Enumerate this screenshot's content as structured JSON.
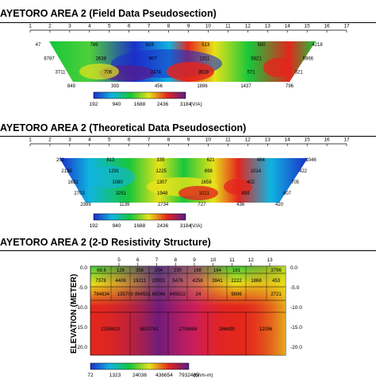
{
  "panels": [
    {
      "title": "AYETORO AREA 2 (Field Data Pseudosection)",
      "axis_ticks": [
        1,
        2,
        3,
        4,
        5,
        6,
        7,
        8,
        9,
        10,
        11,
        12,
        13,
        14,
        15,
        16,
        17
      ],
      "pseudo_values": [
        "47",
        "789",
        "628",
        "513",
        "500",
        "4218",
        "6787",
        "2638",
        "907",
        "1311",
        "5821",
        "5966",
        "3711",
        "706",
        "2474",
        "3518",
        "571",
        "321",
        "849",
        "393",
        "456",
        "1896",
        "1437",
        "796"
      ],
      "colorbar": {
        "ticks": [
          "192",
          "940",
          "1688",
          "2436",
          "3184"
        ],
        "unit": "(V/A)"
      }
    },
    {
      "title": "AYETORO AREA 2 (Theoretical Data Pseudosection)",
      "axis_ticks": [
        1,
        2,
        3,
        4,
        5,
        6,
        7,
        8,
        9,
        10,
        11,
        12,
        13,
        14,
        15,
        16,
        17
      ],
      "pseudo_values": [
        "202",
        "813",
        "335",
        "621",
        "464",
        "1046",
        "2138",
        "1291",
        "1225",
        "698",
        "1014",
        "422",
        "1652",
        "1080",
        "1307",
        "1656",
        "402",
        "705",
        "2703",
        "3251",
        "1948",
        "1021",
        "839",
        "607",
        "2399",
        "1139",
        "2734",
        "727",
        "436",
        "420"
      ],
      "colorbar": {
        "ticks": [
          "192",
          "940",
          "1688",
          "2436",
          "3184"
        ],
        "unit": "(V/A)"
      }
    },
    {
      "title": "AYETORO AREA 2 (2-D Resistivity Structure)",
      "x_ticks": [
        "5",
        "6",
        "7",
        "8",
        "9",
        "10",
        "11",
        "12",
        "13"
      ],
      "ylabel": "ELEVATION (METER)",
      "y_ticks": [
        "0.0",
        "-5.0",
        "-10.0",
        "-15.0",
        "-20.0"
      ],
      "layer1": [
        "68.6",
        "126",
        "356",
        "204",
        "230",
        "168",
        "164",
        "181",
        "3796"
      ],
      "layer2": [
        "7378",
        "4406",
        "19211",
        "20931",
        "5476",
        "4258",
        "3941",
        "2222",
        "1868",
        "453"
      ],
      "layer3": [
        "784834",
        "155700",
        "864531",
        "65046",
        "645622",
        "24",
        "9896",
        "2721"
      ],
      "layer4": [
        "2158423",
        "6810741",
        "1706484",
        "266490",
        "12096"
      ],
      "colorbar": {
        "ticks": [
          "72",
          "1323",
          "24036",
          "436654",
          "7932485"
        ],
        "unit": "(ohm-m)"
      }
    }
  ],
  "chart_data": [
    {
      "type": "heatmap",
      "title": "AYETORO AREA 2 (Field Data Pseudosection)",
      "x_ticks": [
        1,
        2,
        3,
        4,
        5,
        6,
        7,
        8,
        9,
        10,
        11,
        12,
        13,
        14,
        15,
        16,
        17
      ],
      "colorbar_range": [
        192,
        3184
      ],
      "colorbar_unit": "(V/A)"
    },
    {
      "type": "heatmap",
      "title": "AYETORO AREA 2 (Theoretical Data Pseudosection)",
      "x_ticks": [
        1,
        2,
        3,
        4,
        5,
        6,
        7,
        8,
        9,
        10,
        11,
        12,
        13,
        14,
        15,
        16,
        17
      ],
      "colorbar_range": [
        192,
        3184
      ],
      "colorbar_unit": "(V/A)"
    },
    {
      "type": "heatmap",
      "title": "AYETORO AREA 2 (2-D Resistivity Structure)",
      "ylabel": "ELEVATION (METER)",
      "ylim": [
        -20,
        0
      ],
      "colorbar_range": [
        72,
        7932485
      ],
      "colorbar_unit": "(ohm-m)"
    }
  ]
}
